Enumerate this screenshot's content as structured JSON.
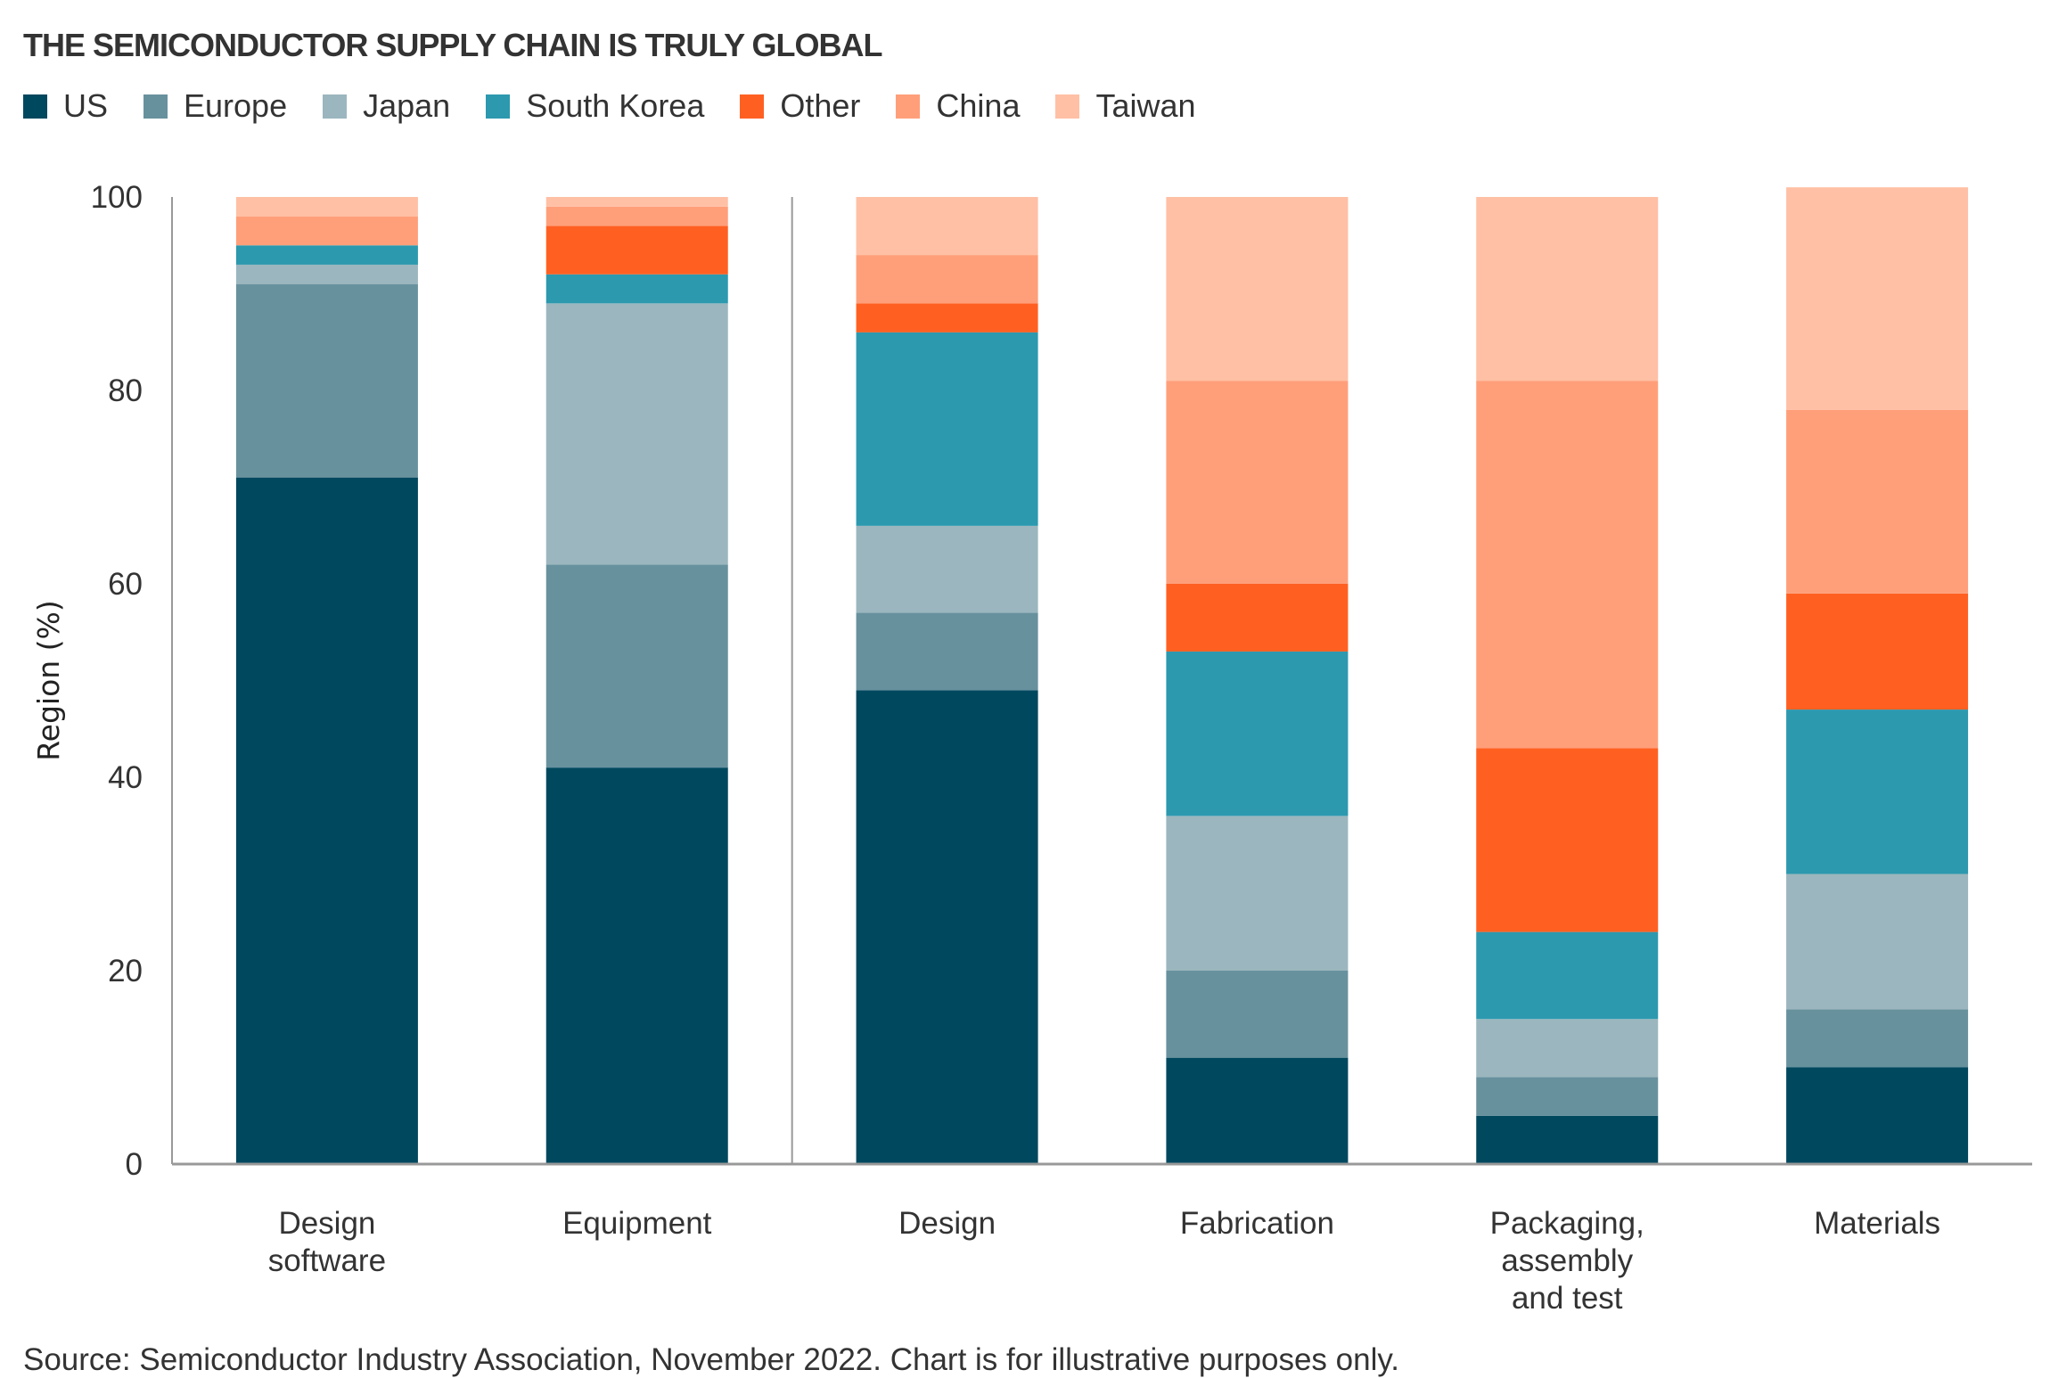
{
  "title": "THE SEMICONDUCTOR SUPPLY CHAIN IS TRULY GLOBAL",
  "source": "Source: Semiconductor Industry Association, November 2022. Chart is for illustrative purposes only.",
  "chart_data": {
    "type": "bar",
    "stacked": true,
    "title": "THE SEMICONDUCTOR SUPPLY CHAIN IS TRULY GLOBAL",
    "xlabel": "",
    "ylabel": "Region (%)",
    "ylim": [
      0,
      100
    ],
    "yticks": [
      0,
      20,
      40,
      60,
      80,
      100
    ],
    "grid": false,
    "legend_position": "top-left",
    "categories": [
      "Design software",
      "Equipment",
      "Design",
      "Fabrication",
      "Packaging, assembly and test",
      "Materials"
    ],
    "category_lines": [
      [
        "Design",
        "software"
      ],
      [
        "Equipment"
      ],
      [
        "Design"
      ],
      [
        "Fabrication"
      ],
      [
        "Packaging,",
        "assembly",
        "and test"
      ],
      [
        "Materials"
      ]
    ],
    "separator_after_category": 1,
    "series": [
      {
        "name": "US",
        "color": "#00485E",
        "values": [
          71,
          41,
          49,
          11,
          5,
          10
        ]
      },
      {
        "name": "Europe",
        "color": "#68919E",
        "values": [
          20,
          21,
          8,
          9,
          4,
          6
        ]
      },
      {
        "name": "Japan",
        "color": "#9BB6BE",
        "values": [
          2,
          27,
          9,
          16,
          6,
          14
        ]
      },
      {
        "name": "South Korea",
        "color": "#2C99AF",
        "values": [
          2,
          3,
          20,
          17,
          9,
          17
        ]
      },
      {
        "name": "Other",
        "color": "#FF6022",
        "values": [
          0,
          5,
          3,
          7,
          19,
          12
        ]
      },
      {
        "name": "China",
        "color": "#FF9F7A",
        "values": [
          3,
          2,
          5,
          21,
          38,
          19
        ]
      },
      {
        "name": "Taiwan",
        "color": "#FFC0A5",
        "values": [
          2,
          1,
          6,
          19,
          19,
          23
        ]
      }
    ]
  }
}
